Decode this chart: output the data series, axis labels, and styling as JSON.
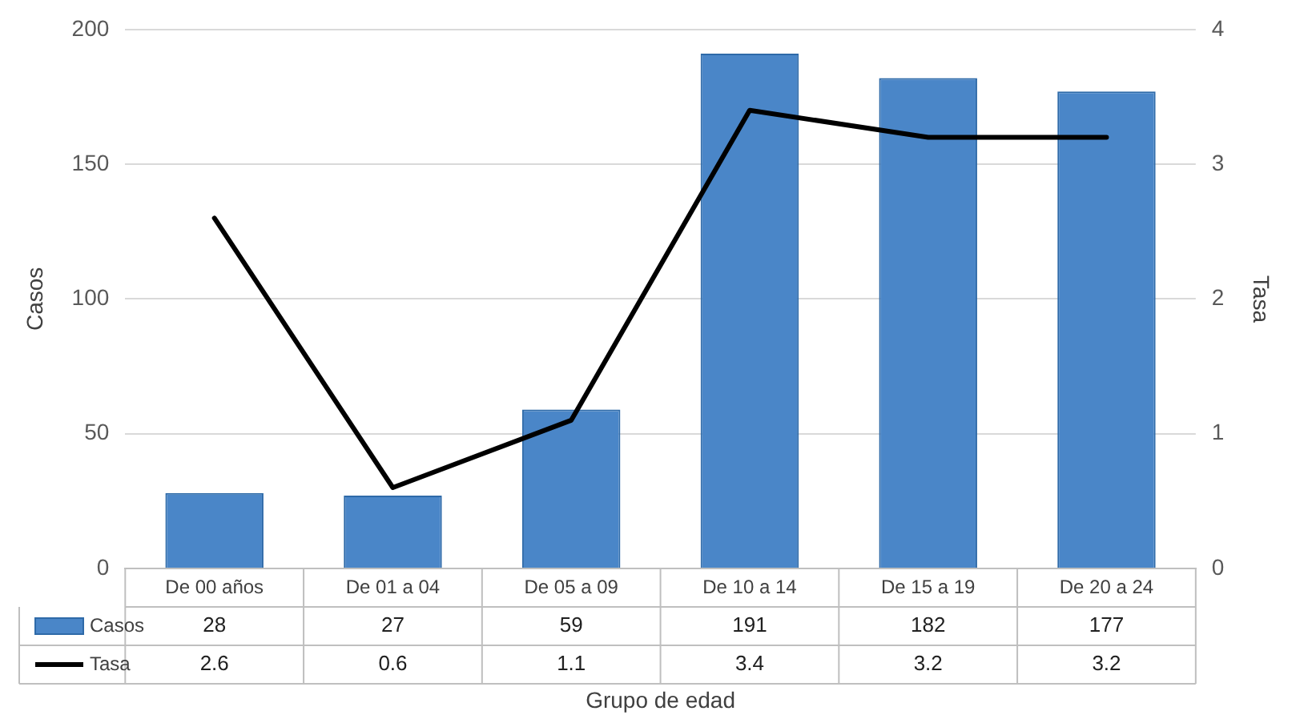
{
  "chart_data": {
    "type": "bar",
    "xlabel": "Grupo de edad",
    "ylabel": "Casos",
    "y2label": "Tasa",
    "categories": [
      "De 00 años",
      "De 01 a 04",
      "De 05 a 09",
      "De 10 a 14",
      "De 15 a 19",
      "De 20 a 24"
    ],
    "series": [
      {
        "name": "Casos",
        "color": "#4a86c8",
        "values": [
          28,
          27,
          59,
          191,
          182,
          177
        ]
      },
      {
        "name": "Tasa",
        "type": "line",
        "axis": "y2",
        "color": "#000000",
        "values": [
          2.6,
          0.6,
          1.1,
          3.4,
          3.2,
          3.2
        ]
      }
    ],
    "ylim": [
      0,
      200
    ],
    "yticks": [
      0,
      50,
      100,
      150,
      200
    ],
    "y2lim": [
      0,
      4
    ],
    "y2ticks": [
      0,
      1,
      2,
      3,
      4
    ],
    "grid": "y",
    "legend": "bottom",
    "marker": "none",
    "data_labels": true
  }
}
